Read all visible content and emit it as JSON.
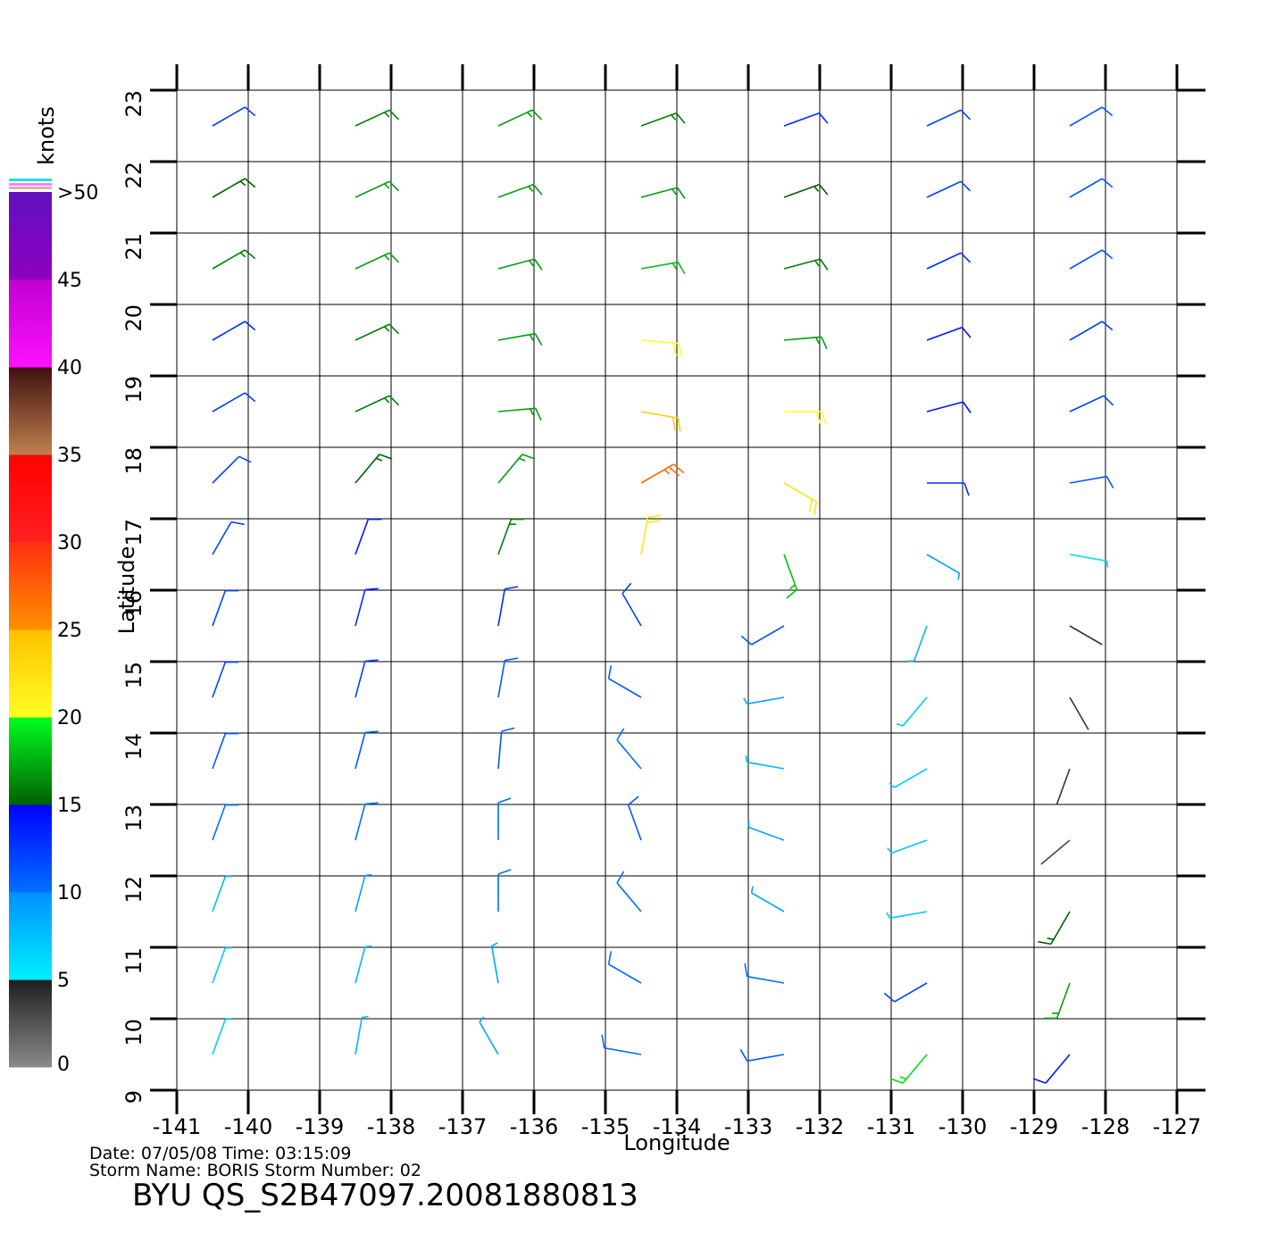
{
  "map": {
    "title": "BYU  QS_S2B47097.20081880813",
    "info_line1": "Date:  07/05/08   Time:  03:15:09",
    "info_line2": "Storm  Name:  BORIS    Storm  Number:  02",
    "x_label": "Longitude",
    "y_label": "Latitude",
    "xlim": [
      -141,
      -127
    ],
    "ylim": [
      9,
      23
    ],
    "xticks": [
      -141,
      -140,
      -139,
      -138,
      -137,
      -136,
      -135,
      -134,
      -133,
      -132,
      -131,
      -130,
      -129,
      -128,
      -127
    ],
    "yticks": [
      9,
      10,
      11,
      12,
      13,
      14,
      15,
      16,
      17,
      18,
      19,
      20,
      21,
      22,
      23
    ],
    "grid": true,
    "colorbar": {
      "label": "knots",
      "lim": [
        0,
        50
      ],
      "ticks": [
        0,
        5,
        10,
        15,
        20,
        25,
        30,
        35,
        40,
        45,
        {
          "value": 50,
          "label": ">50"
        }
      ],
      "segments": [
        [
          "#8a8a8a",
          "#1e1e1e"
        ],
        [
          "#00f0ff",
          "#0090ff"
        ],
        [
          "#0070ff",
          "#0000ff"
        ],
        [
          "#006000",
          "#00ff20"
        ],
        [
          "#ffff20",
          "#ffc000"
        ],
        [
          "#ff9000",
          "#ff3010"
        ],
        [
          "#ff2020",
          "#ff0000"
        ],
        [
          "#c08050",
          "#401010"
        ],
        [
          "#ff10ff",
          "#c000d0"
        ],
        [
          "#9000c0",
          "#6010c0"
        ]
      ]
    },
    "winds": {
      "lon": [
        -140.5,
        -138.5,
        -136.5,
        -134.5,
        -132.5,
        -130.5,
        -128.5
      ],
      "lat": [
        22.5,
        21.5,
        20.5,
        19.5,
        18.5,
        17.5,
        16.5,
        15.5,
        14.5,
        13.5,
        12.5,
        11.5,
        10.5,
        9.5
      ],
      "speed": [
        [
          12,
          16,
          17,
          16,
          13,
          12,
          11
        ],
        [
          15,
          17,
          17,
          17,
          15,
          12,
          11
        ],
        [
          16,
          17,
          17,
          18,
          16,
          13,
          11
        ],
        [
          13,
          16,
          17,
          20,
          17,
          14,
          12
        ],
        [
          12,
          16,
          17,
          24,
          20,
          14,
          12
        ],
        [
          12,
          15,
          17,
          27,
          22,
          13,
          11
        ],
        [
          12,
          14,
          16,
          22,
          18,
          9,
          6
        ],
        [
          12,
          13,
          13,
          12,
          11,
          8,
          4
        ],
        [
          12,
          12,
          11,
          11,
          9,
          7,
          4
        ],
        [
          11,
          11,
          11,
          10,
          8,
          7,
          4
        ],
        [
          10,
          10,
          10,
          11,
          9,
          7,
          3
        ],
        [
          8,
          9,
          10,
          10,
          9,
          7,
          15
        ],
        [
          7,
          8,
          9,
          10,
          10,
          12,
          17
        ],
        [
          7,
          8,
          9,
          10,
          11,
          19,
          14
        ]
      ],
      "direction": [
        [
          60,
          65,
          65,
          70,
          70,
          65,
          60
        ],
        [
          60,
          65,
          70,
          75,
          70,
          65,
          60
        ],
        [
          60,
          65,
          75,
          80,
          75,
          65,
          60
        ],
        [
          60,
          65,
          80,
          95,
          85,
          70,
          60
        ],
        [
          60,
          65,
          85,
          100,
          90,
          75,
          65
        ],
        [
          45,
          40,
          40,
          60,
          120,
          90,
          80
        ],
        [
          30,
          20,
          20,
          10,
          160,
          120,
          100
        ],
        [
          20,
          15,
          10,
          330,
          240,
          200,
          120
        ],
        [
          20,
          15,
          10,
          300,
          260,
          220,
          150
        ],
        [
          20,
          15,
          5,
          320,
          280,
          240,
          200
        ],
        [
          20,
          15,
          0,
          340,
          290,
          250,
          230
        ],
        [
          20,
          15,
          360,
          320,
          300,
          260,
          210
        ],
        [
          20,
          15,
          350,
          300,
          280,
          240,
          200
        ],
        [
          20,
          10,
          330,
          280,
          260,
          220,
          220
        ]
      ]
    }
  }
}
